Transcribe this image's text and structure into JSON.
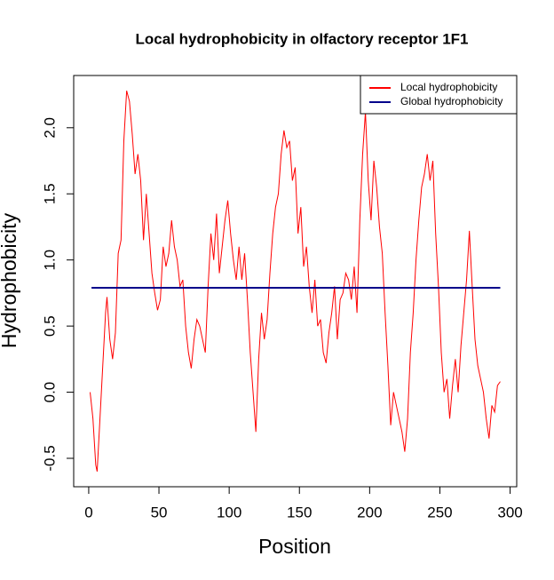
{
  "chart_data": {
    "type": "line",
    "title": "Local hydrophobicity in olfactory receptor 1F1",
    "x_label": "Position",
    "y_label": "Hydrophobicity",
    "xlim": [
      -10.7,
      304.7
    ],
    "ylim": [
      -0.715,
      2.395
    ],
    "xticks": [
      0,
      50,
      100,
      150,
      200,
      250,
      300
    ],
    "yticks": [
      {
        "value": -0.5,
        "label": "-0.5"
      },
      {
        "value": 0,
        "label": "0.0"
      },
      0.5,
      {
        "value": 1,
        "label": "1.0"
      },
      1.5,
      {
        "value": 2,
        "label": "2.0"
      }
    ],
    "legend": "topright",
    "series": [
      {
        "name": "Local hydrophobicity",
        "color": "#ff0000",
        "x": [
          1,
          3,
          5,
          6,
          8,
          10,
          12,
          13,
          15,
          17,
          19,
          21,
          23,
          25,
          27,
          29,
          31,
          33,
          35,
          37,
          39,
          41,
          43,
          45,
          47,
          49,
          51,
          53,
          55,
          57,
          59,
          61,
          63,
          65,
          67,
          69,
          71,
          73,
          75,
          77,
          79,
          81,
          83,
          85,
          87,
          89,
          91,
          93,
          95,
          97,
          99,
          101,
          103,
          105,
          107,
          109,
          111,
          113,
          115,
          117,
          119,
          121,
          123,
          125,
          127,
          129,
          131,
          133,
          135,
          137,
          139,
          141,
          143,
          145,
          147,
          149,
          151,
          153,
          155,
          157,
          159,
          161,
          163,
          165,
          167,
          169,
          171,
          173,
          175,
          177,
          179,
          181,
          183,
          185,
          187,
          189,
          191,
          193,
          195,
          197,
          199,
          201,
          203,
          205,
          207,
          209,
          211,
          213,
          215,
          217,
          219,
          221,
          223,
          225,
          227,
          229,
          231,
          233,
          235,
          237,
          239,
          241,
          243,
          245,
          247,
          249,
          251,
          253,
          255,
          257,
          259,
          261,
          263,
          265,
          267,
          269,
          271,
          273,
          275,
          277,
          279,
          281,
          283,
          285,
          287,
          289,
          291,
          293
        ],
        "values": [
          0.0,
          -0.2,
          -0.55,
          -0.6,
          -0.2,
          0.2,
          0.6,
          0.72,
          0.4,
          0.25,
          0.45,
          1.05,
          1.15,
          1.9,
          2.28,
          2.2,
          1.95,
          1.65,
          1.8,
          1.6,
          1.15,
          1.5,
          1.2,
          0.9,
          0.75,
          0.62,
          0.7,
          1.1,
          0.95,
          1.05,
          1.3,
          1.1,
          1.0,
          0.8,
          0.85,
          0.5,
          0.3,
          0.18,
          0.4,
          0.55,
          0.5,
          0.4,
          0.3,
          0.8,
          1.2,
          1.0,
          1.35,
          0.9,
          1.1,
          1.3,
          1.45,
          1.2,
          1.0,
          0.85,
          1.1,
          0.85,
          1.05,
          0.7,
          0.3,
          0.0,
          -0.3,
          0.25,
          0.6,
          0.4,
          0.55,
          0.9,
          1.2,
          1.4,
          1.5,
          1.8,
          1.98,
          1.85,
          1.9,
          1.6,
          1.7,
          1.2,
          1.4,
          0.95,
          1.1,
          0.8,
          0.6,
          0.85,
          0.5,
          0.55,
          0.3,
          0.22,
          0.45,
          0.6,
          0.8,
          0.4,
          0.7,
          0.75,
          0.9,
          0.85,
          0.7,
          0.95,
          0.6,
          1.3,
          1.8,
          2.12,
          1.6,
          1.3,
          1.75,
          1.55,
          1.25,
          1.05,
          0.6,
          0.2,
          -0.25,
          0.0,
          -0.1,
          -0.2,
          -0.3,
          -0.45,
          -0.2,
          0.3,
          0.6,
          1.0,
          1.3,
          1.55,
          1.65,
          1.8,
          1.6,
          1.75,
          1.2,
          0.8,
          0.3,
          0.0,
          0.1,
          -0.2,
          0.05,
          0.25,
          0.0,
          0.35,
          0.6,
          0.85,
          1.22,
          0.8,
          0.4,
          0.2,
          0.1,
          0.0,
          -0.2,
          -0.35,
          -0.1,
          -0.15,
          0.05,
          0.08
        ]
      },
      {
        "name": "Global hydrophobicity",
        "color": "#00008b",
        "x": [
          2,
          293
        ],
        "values": [
          0.79,
          0.79
        ]
      }
    ]
  }
}
